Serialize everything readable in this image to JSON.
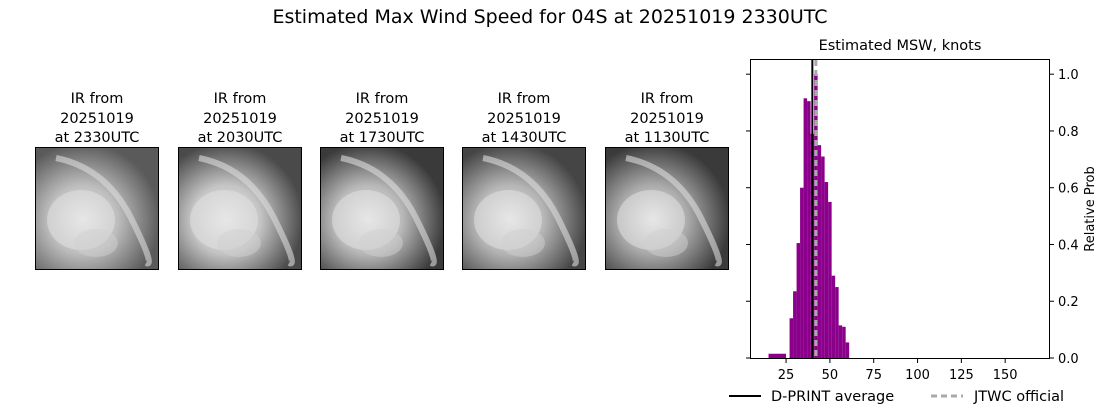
{
  "figure": {
    "title": "Estimated Max Wind Speed for 04S at 20251019 2330UTC"
  },
  "ir_panels": [
    {
      "line1": "IR from",
      "line2": "20251019",
      "line3": "at 2330UTC",
      "shade": "#bdbdbd",
      "bg": "#5a5a5a"
    },
    {
      "line1": "IR from",
      "line2": "20251019",
      "line3": "at 2030UTC",
      "shade": "#c4c4c4",
      "bg": "#4a4a4a"
    },
    {
      "line1": "IR from",
      "line2": "20251019",
      "line3": "at 1730UTC",
      "shade": "#b8b8b8",
      "bg": "#3a3a3a"
    },
    {
      "line1": "IR from",
      "line2": "20251019",
      "line3": "at 1430UTC",
      "shade": "#b5b5b5",
      "bg": "#454545"
    },
    {
      "line1": "IR from",
      "line2": "20251019",
      "line3": "at 1130UTC",
      "shade": "#aaaaaa",
      "bg": "#3a3a3a"
    }
  ],
  "chart_data": {
    "type": "bar",
    "title": "Estimated MSW, knots",
    "xlabel": "",
    "ylabel": "Relative Prob",
    "xlim": [
      5,
      175
    ],
    "ylim": [
      0,
      1.05
    ],
    "xticks": [
      25,
      50,
      75,
      100,
      125,
      150
    ],
    "yticks": [
      0.0,
      0.2,
      0.4,
      0.6,
      0.8,
      1.0
    ],
    "yaxis_side": "right",
    "bar_color": "#8b008b",
    "bins": [
      {
        "x0": 15,
        "x1": 25,
        "value": 0.015
      },
      {
        "x0": 27,
        "x1": 29,
        "value": 0.14
      },
      {
        "x0": 29,
        "x1": 31,
        "value": 0.235
      },
      {
        "x0": 31,
        "x1": 33,
        "value": 0.405
      },
      {
        "x0": 33,
        "x1": 35,
        "value": 0.6
      },
      {
        "x0": 35,
        "x1": 37,
        "value": 0.915
      },
      {
        "x0": 37,
        "x1": 39,
        "value": 0.905
      },
      {
        "x0": 39,
        "x1": 41,
        "value": 0.79
      },
      {
        "x0": 41,
        "x1": 43,
        "value": 1.0
      },
      {
        "x0": 43,
        "x1": 45,
        "value": 0.75
      },
      {
        "x0": 45,
        "x1": 47,
        "value": 0.71
      },
      {
        "x0": 47,
        "x1": 49,
        "value": 0.62
      },
      {
        "x0": 49,
        "x1": 51,
        "value": 0.55
      },
      {
        "x0": 51,
        "x1": 53,
        "value": 0.29
      },
      {
        "x0": 53,
        "x1": 55,
        "value": 0.25
      },
      {
        "x0": 55,
        "x1": 57,
        "value": 0.115
      },
      {
        "x0": 57,
        "x1": 59,
        "value": 0.11
      },
      {
        "x0": 59,
        "x1": 61,
        "value": 0.055
      }
    ],
    "dprint_average": 40,
    "jtwc_official": 42,
    "legend": [
      {
        "label": "D-PRINT average",
        "style": "solid",
        "color": "#000000"
      },
      {
        "label": "JTWC official",
        "style": "dashed",
        "color": "#a9a9a9"
      }
    ],
    "legend_position": "below"
  }
}
